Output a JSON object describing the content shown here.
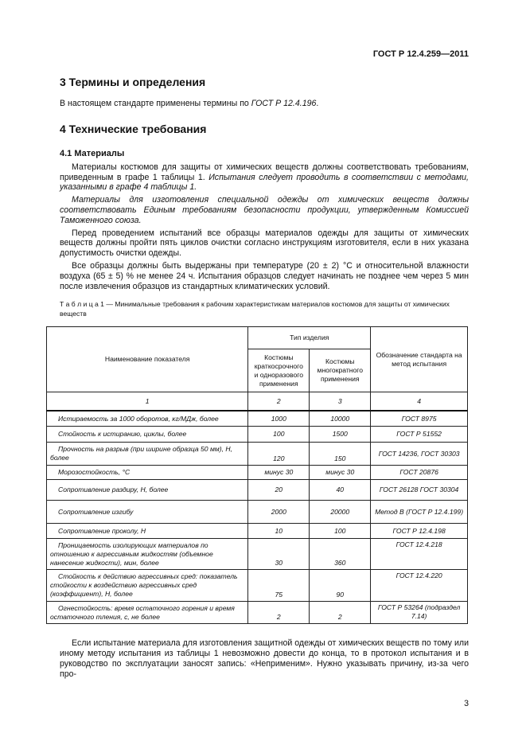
{
  "header": "ГОСТ Р 12.4.259—2011",
  "s3": {
    "title": "3 Термины и определения",
    "text_a": "В настоящем стандарте применены термины по ",
    "text_ref": "ГОСТ Р 12.4.196",
    "text_b": "."
  },
  "s4": {
    "title": "4 Технические требования",
    "sub": "4.1 Материалы",
    "p1a": "Материалы костюмов для защиты от химических веществ должны соответствовать требованиям, приведенным в графе 1 таблицы 1. ",
    "p1b": "Испытания следует проводить в соответствии с методами, указанными в графе 4 таблицы 1.",
    "p2": "Материалы для изготовления специальной одежды от химических веществ должны соответствовать Единым требованиям безопасности продукции, утвержденным Комиссией Таможенного союза.",
    "p3": "Перед проведением испытаний все образцы материалов одежды для защиты от химических веществ должны пройти пять циклов очистки согласно инструкциям изготовителя, если в них указана допустимость очистки одежды.",
    "p4": "Все образцы должны быть выдержаны при температуре (20 ± 2) °С и относительной влажности воздуха (65 ± 5) % не менее 24 ч. Испытания образцов следует начинать не позднее чем через 5 мин после извлечения образцов из стандартных климатических условий."
  },
  "table": {
    "caption": "Т а б л и ц а  1 — Минимальные требования к рабочим характеристикам материалов костюмов для защиты от химических веществ",
    "h_name": "Наименование показателя",
    "h_type": "Тип изделия",
    "h_c2": "Костюмы краткосрочного и одноразового применения",
    "h_c3": "Костюмы многократного применения",
    "h_c4": "Обозначение стандарта на метод испытания",
    "nums": [
      "1",
      "2",
      "3",
      "4"
    ],
    "rows": [
      [
        "Истираемость за 1000 оборотов, кг/МДж, более",
        "1000",
        "10000",
        "ГОСТ 8975"
      ],
      [
        "Стойкость к истиранию, циклы, более",
        "100",
        "1500",
        "ГОСТ Р 51552"
      ],
      [
        "Прочность на разрыв (при ширине образца 50 мм), Н, более",
        "120",
        "150",
        "ГОСТ 14236, ГОСТ 30303"
      ],
      [
        "Морозостойкость, °С",
        "минус 30",
        "минус 30",
        "ГОСТ 20876"
      ],
      [
        "Сопротивление раздиру, Н, более",
        "20",
        "40",
        "ГОСТ 26128 ГОСТ 30304"
      ],
      [
        "Сопротивление изгибу",
        "2000",
        "20000",
        "Метод В (ГОСТ Р 12.4.199)"
      ],
      [
        "Сопротивление проколу, Н",
        "10",
        "100",
        "ГОСТ Р 12.4.198"
      ],
      [
        "Проницаемость изолирующих материалов по отношению к агрессивным жидкостям (объемное нанесение жидкости), мин, более",
        "30",
        "360",
        "ГОСТ 12.4.218"
      ],
      [
        "Стойкость к действию агрессивных сред: показатель стойкости к воздействию агрессивных сред (коэффициент), Н, более",
        "75",
        "90",
        "ГОСТ 12.4.220"
      ],
      [
        "Огнестойкость: время остаточного горения и время остаточного тления, с, не более",
        "2",
        "2",
        "ГОСТ Р 53264 (подраздел 7.14)"
      ]
    ]
  },
  "p5": "Если испытание материала для изготовления защитной одежды от химических веществ по тому или иному методу испытания из таблицы 1 невозможно довести до конца, то в протокол испытания и в руководство по эксплуатации заносят запись: «Неприменим». Нужно указывать причину, из-за чего про-",
  "page_number": "3"
}
